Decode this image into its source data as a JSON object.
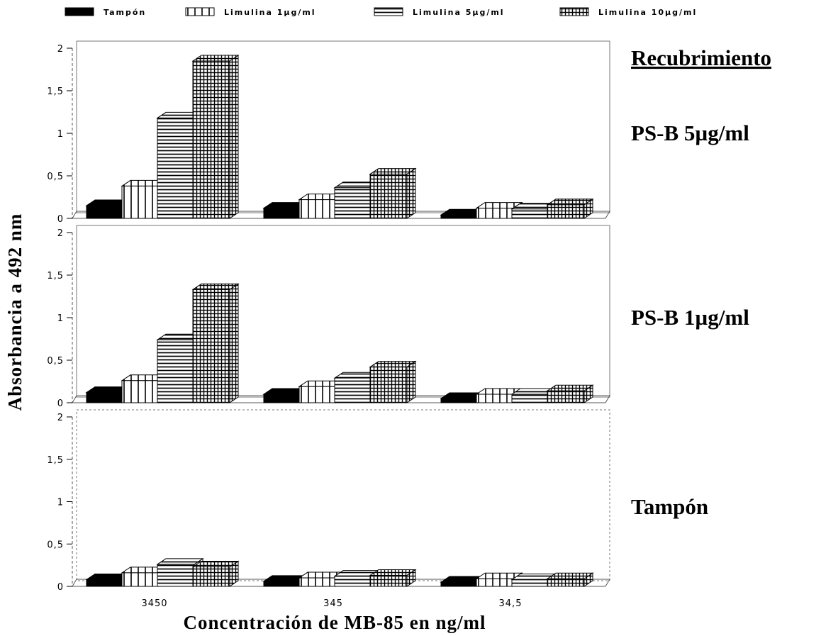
{
  "chart_data": {
    "type": "bar",
    "legend_position": "top",
    "series": [
      {
        "name": "Tampón",
        "pattern": "solid"
      },
      {
        "name": "Limulina 1µg/ml",
        "pattern": "vertical"
      },
      {
        "name": "Limulina 5µg/ml",
        "pattern": "horizontal"
      },
      {
        "name": "Limulina 10µg/ml",
        "pattern": "grid"
      }
    ],
    "categories": [
      "3450",
      "345",
      "34,5"
    ],
    "xlabel": "Concentración de MB-85 en ng/ml",
    "ylabel": "Absorbancia a 492 nm",
    "ylim": [
      0,
      2
    ],
    "yticks": [
      "0",
      "0,5",
      "1",
      "1,5",
      "2"
    ],
    "grid": false,
    "group_title": "Recubrimiento",
    "panels": [
      {
        "title": "PS-B 5µg/ml",
        "values": [
          [
            0.15,
            0.38,
            1.18,
            1.85
          ],
          [
            0.12,
            0.22,
            0.36,
            0.52
          ],
          [
            0.04,
            0.12,
            0.11,
            0.16
          ]
        ]
      },
      {
        "title": "PS-B 1µg/ml",
        "values": [
          [
            0.12,
            0.26,
            0.74,
            1.33
          ],
          [
            0.1,
            0.19,
            0.29,
            0.42
          ],
          [
            0.05,
            0.1,
            0.1,
            0.14
          ]
        ]
      },
      {
        "title": "Tampón",
        "values": [
          [
            0.08,
            0.16,
            0.26,
            0.23
          ],
          [
            0.06,
            0.1,
            0.12,
            0.13
          ],
          [
            0.05,
            0.09,
            0.08,
            0.09
          ]
        ]
      }
    ],
    "colors": {
      "ink": "#000000",
      "frame": "#777777",
      "background": "#ffffff"
    }
  }
}
